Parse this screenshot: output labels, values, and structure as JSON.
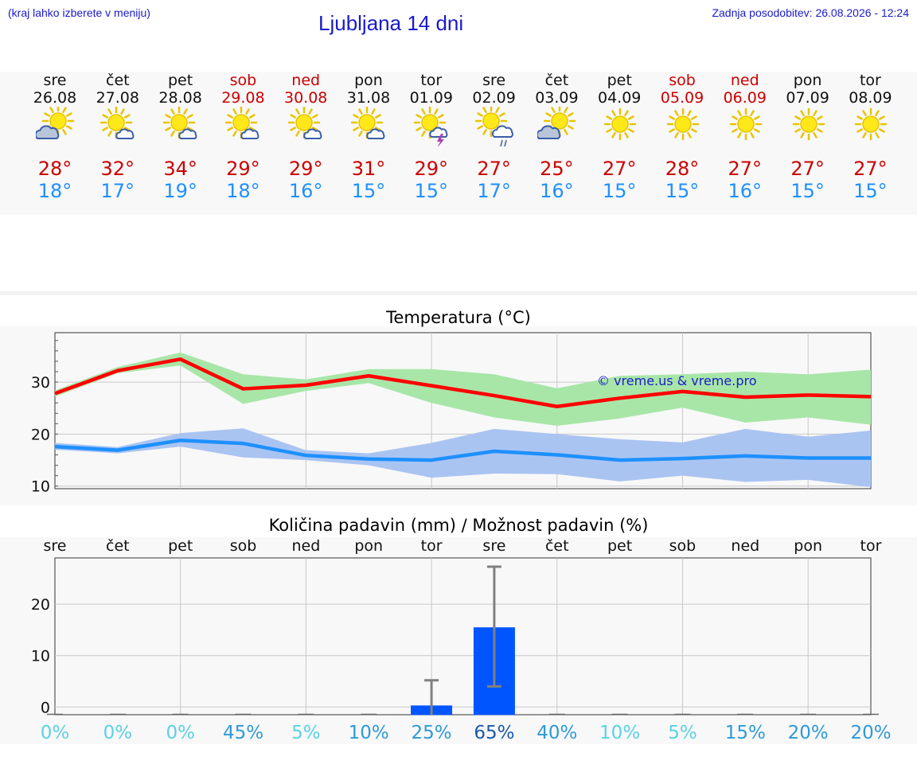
{
  "header": {
    "left_note": "(kraj lahko izberete v meniju)",
    "title": "Ljubljana 14 dni",
    "updated": "Zadnja posodobitev: 26.08.2026 - 12:24"
  },
  "days": [
    {
      "name": "sre",
      "date": "26.08",
      "weekend": false,
      "icon": "sun-cloud-icon",
      "tmax": "28°",
      "tmin": "18°"
    },
    {
      "name": "čet",
      "date": "27.08",
      "weekend": false,
      "icon": "sun-small-cloud-icon",
      "tmax": "32°",
      "tmin": "17°"
    },
    {
      "name": "pet",
      "date": "28.08",
      "weekend": false,
      "icon": "sun-small-cloud-icon",
      "tmax": "34°",
      "tmin": "19°"
    },
    {
      "name": "sob",
      "date": "29.08",
      "weekend": true,
      "icon": "sun-small-cloud-icon",
      "tmax": "29°",
      "tmin": "18°"
    },
    {
      "name": "ned",
      "date": "30.08",
      "weekend": true,
      "icon": "sun-small-cloud-icon",
      "tmax": "29°",
      "tmin": "16°"
    },
    {
      "name": "pon",
      "date": "31.08",
      "weekend": false,
      "icon": "sun-small-cloud-icon",
      "tmax": "31°",
      "tmin": "15°"
    },
    {
      "name": "tor",
      "date": "01.09",
      "weekend": false,
      "icon": "sun-thunder-icon",
      "tmax": "29°",
      "tmin": "15°"
    },
    {
      "name": "sre",
      "date": "02.09",
      "weekend": false,
      "icon": "sun-rain-icon",
      "tmax": "27°",
      "tmin": "17°"
    },
    {
      "name": "čet",
      "date": "03.09",
      "weekend": false,
      "icon": "sun-cloud-icon",
      "tmax": "25°",
      "tmin": "16°"
    },
    {
      "name": "pet",
      "date": "04.09",
      "weekend": false,
      "icon": "sun-icon",
      "tmax": "27°",
      "tmin": "15°"
    },
    {
      "name": "sob",
      "date": "05.09",
      "weekend": true,
      "icon": "sun-icon",
      "tmax": "28°",
      "tmin": "15°"
    },
    {
      "name": "ned",
      "date": "06.09",
      "weekend": true,
      "icon": "sun-icon",
      "tmax": "27°",
      "tmin": "16°"
    },
    {
      "name": "pon",
      "date": "07.09",
      "weekend": false,
      "icon": "sun-icon",
      "tmax": "27°",
      "tmin": "15°"
    },
    {
      "name": "tor",
      "date": "08.09",
      "weekend": false,
      "icon": "sun-icon",
      "tmax": "27°",
      "tmin": "15°"
    }
  ],
  "chart_data": [
    {
      "type": "line",
      "title": "Temperatura (°C)",
      "watermark": "© vreme.us & vreme.pro",
      "ylim": [
        9.5,
        39.5
      ],
      "yticks": [
        10,
        20,
        30
      ],
      "grid": true,
      "x": [
        0,
        1,
        2,
        3,
        4,
        5,
        6,
        7,
        8,
        9,
        10,
        11,
        12,
        13
      ],
      "series": [
        {
          "key": "tmax",
          "color": "#ff0000",
          "band_color": "#a8e6a8",
          "values": [
            27.8,
            32.2,
            34.4,
            28.7,
            29.4,
            31.2,
            29.3,
            27.4,
            25.3,
            26.9,
            28.2,
            27.1,
            27.5,
            27.2
          ],
          "band_low": [
            27.2,
            31.7,
            33.2,
            25.8,
            28.3,
            29.8,
            26.0,
            23.2,
            21.6,
            23.0,
            25.1,
            22.2,
            23.2,
            21.8
          ],
          "band_high": [
            28.4,
            32.9,
            35.7,
            31.5,
            30.5,
            32.5,
            32.5,
            31.5,
            28.8,
            31.2,
            31.5,
            32.0,
            31.5,
            32.4
          ]
        },
        {
          "key": "tmin",
          "color": "#1e90ff",
          "band_color": "#aac4f2",
          "values": [
            17.6,
            16.9,
            18.8,
            18.2,
            15.9,
            15.2,
            15.0,
            16.7,
            16.0,
            15.0,
            15.3,
            15.8,
            15.4,
            15.4
          ],
          "band_low": [
            17.0,
            16.3,
            17.6,
            15.5,
            15.0,
            14.0,
            11.6,
            12.4,
            12.3,
            10.9,
            12.0,
            10.8,
            11.2,
            9.8
          ],
          "band_high": [
            18.3,
            17.5,
            20.2,
            21.1,
            16.9,
            16.3,
            18.3,
            21.0,
            20.0,
            19.0,
            18.4,
            21.0,
            19.5,
            20.7
          ]
        }
      ]
    },
    {
      "type": "bar",
      "title": "Količina padavin (mm) / Možnost padavin (%)",
      "categories": [
        "sre",
        "čet",
        "pet",
        "sob",
        "ned",
        "pon",
        "tor",
        "sre",
        "čet",
        "pet",
        "sob",
        "ned",
        "pon",
        "tor"
      ],
      "values": [
        0,
        0,
        0,
        0,
        0,
        0,
        0.3,
        15.5,
        0,
        0,
        0,
        0,
        0,
        0
      ],
      "err_low": [
        0,
        0,
        0,
        0,
        0,
        0,
        0,
        4.0,
        0,
        0,
        0,
        0,
        0,
        0
      ],
      "err_high": [
        0,
        0,
        0,
        0,
        0,
        0,
        5.2,
        27.3,
        0,
        0,
        0,
        0,
        0,
        0
      ],
      "ylim": [
        -1.5,
        29.0
      ],
      "yticks": [
        0,
        10,
        20
      ],
      "bar_color": "#0055ff",
      "probability": [
        "0%",
        "0%",
        "0%",
        "45%",
        "5%",
        "10%",
        "25%",
        "65%",
        "40%",
        "10%",
        "5%",
        "15%",
        "20%",
        "20%"
      ],
      "probability_colors": [
        "#5bd1e6",
        "#5bd1e6",
        "#5bd1e6",
        "#2e9ad6",
        "#5bd1e6",
        "#2e9ad6",
        "#2e9ad6",
        "#1a5aa8",
        "#2e9ad6",
        "#5bd1e6",
        "#5bd1e6",
        "#2e9ad6",
        "#2e9ad6",
        "#2e9ad6"
      ]
    }
  ]
}
